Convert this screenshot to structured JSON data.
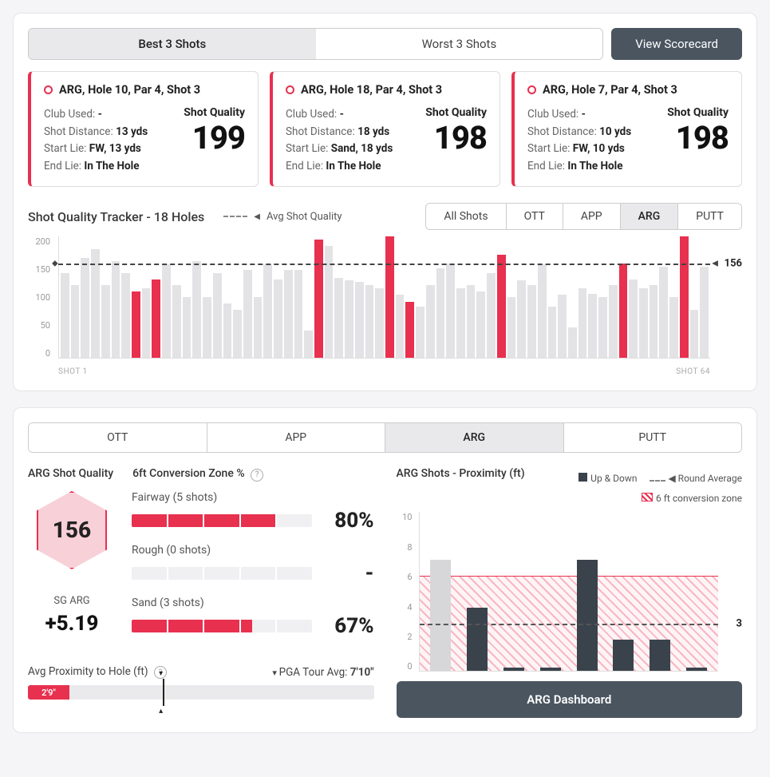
{
  "colors": {
    "accent": "#e8304f",
    "dark_button": "#4a5560",
    "bar_gray": "#e3e3e6",
    "bar_dark": "#3a434c",
    "panel_bg": "#ffffff"
  },
  "top": {
    "segments": {
      "best": "Best 3 Shots",
      "worst": "Worst 3 Shots",
      "active": "best"
    },
    "view_scorecard": "View Scorecard"
  },
  "shot_cards": [
    {
      "title": "ARG, Hole 10, Par 4, Shot 3",
      "club_label": "Club Used:",
      "club": "-",
      "dist_label": "Shot Distance:",
      "dist": "13 yds",
      "start_label": "Start Lie:",
      "start": "FW, 13 yds",
      "end_label": "End Lie:",
      "end": "In The Hole",
      "sq_label": "Shot Quality",
      "sq": "199"
    },
    {
      "title": "ARG, Hole 18, Par 4, Shot 3",
      "club_label": "Club Used:",
      "club": "-",
      "dist_label": "Shot Distance:",
      "dist": "18 yds",
      "start_label": "Start Lie:",
      "start": "Sand, 18 yds",
      "end_label": "End Lie:",
      "end": "In The Hole",
      "sq_label": "Shot Quality",
      "sq": "198"
    },
    {
      "title": "ARG, Hole 7, Par 4, Shot 3",
      "club_label": "Club Used:",
      "club": "-",
      "dist_label": "Shot Distance:",
      "dist": "10 yds",
      "start_label": "Start Lie:",
      "start": "FW, 10 yds",
      "end_label": "End Lie:",
      "end": "In The Hole",
      "sq_label": "Shot Quality",
      "sq": "198"
    }
  ],
  "tracker": {
    "title": "Shot Quality Tracker - 18 Holes",
    "legend": "Avg Shot Quality",
    "filters": [
      "All Shots",
      "OTT",
      "APP",
      "ARG",
      "PUTT"
    ],
    "active_filter": "ARG",
    "y_ticks": [
      "200",
      "150",
      "100",
      "50",
      "0"
    ],
    "y_max": 200,
    "avg": 156,
    "x_start": "SHOT 1",
    "x_end": "SHOT 64",
    "values": [
      140,
      120,
      165,
      180,
      120,
      160,
      140,
      110,
      115,
      130,
      155,
      120,
      100,
      160,
      100,
      140,
      90,
      80,
      145,
      100,
      155,
      130,
      145,
      145,
      45,
      195,
      185,
      132,
      128,
      125,
      120,
      115,
      200,
      105,
      92,
      85,
      120,
      148,
      156,
      115,
      120,
      110,
      140,
      170,
      100,
      128,
      120,
      155,
      85,
      105,
      50,
      115,
      106,
      100,
      120,
      156,
      130,
      115,
      120,
      150,
      100,
      200,
      80,
      150
    ],
    "highlight_idx": [
      7,
      9,
      25,
      32,
      34,
      43,
      55,
      61
    ]
  },
  "lower": {
    "tabs": [
      "OTT",
      "APP",
      "ARG",
      "PUTT"
    ],
    "active_tab": "ARG",
    "sq_title": "ARG Shot Quality",
    "conv_title": "6ft Conversion Zone %",
    "hex_value": "156",
    "sg_label": "SG ARG",
    "sg_value": "+5.19",
    "conv_rows": [
      {
        "label": "Fairway (5 shots)",
        "pct_num": 80,
        "pct": "80%"
      },
      {
        "label": "Rough (0 shots)",
        "pct_num": 0,
        "pct": "-"
      },
      {
        "label": "Sand (3 shots)",
        "pct_num": 67,
        "pct": "67%"
      }
    ],
    "prox_title": "ARG Shots - Proximity (ft)",
    "legend_updown": "Up & Down",
    "legend_roundavg": "Round Average",
    "legend_zone": "6 ft conversion zone",
    "prox_y_ticks": [
      "10",
      "8",
      "6",
      "4",
      "2",
      "0"
    ],
    "prox_y_max": 10,
    "prox_zone_max": 6,
    "prox_avg": 3,
    "prox_bars": [
      {
        "v": 7,
        "light": true
      },
      {
        "v": 4,
        "light": false
      },
      {
        "v": 0.2,
        "light": false
      },
      {
        "v": 0.2,
        "light": false
      },
      {
        "v": 7,
        "light": false
      },
      {
        "v": 2,
        "light": false
      },
      {
        "v": 2,
        "light": false
      },
      {
        "v": 0.2,
        "light": false
      }
    ],
    "dash_btn": "ARG Dashboard",
    "prox_footer_label": "Avg Proximity to Hole (ft)",
    "pga_label": "PGA Tour Avg:",
    "pga_val": "7'10\"",
    "slider_value_label": "2'9\"",
    "slider_fill_pct": 12,
    "slider_marker_pct": 39
  }
}
